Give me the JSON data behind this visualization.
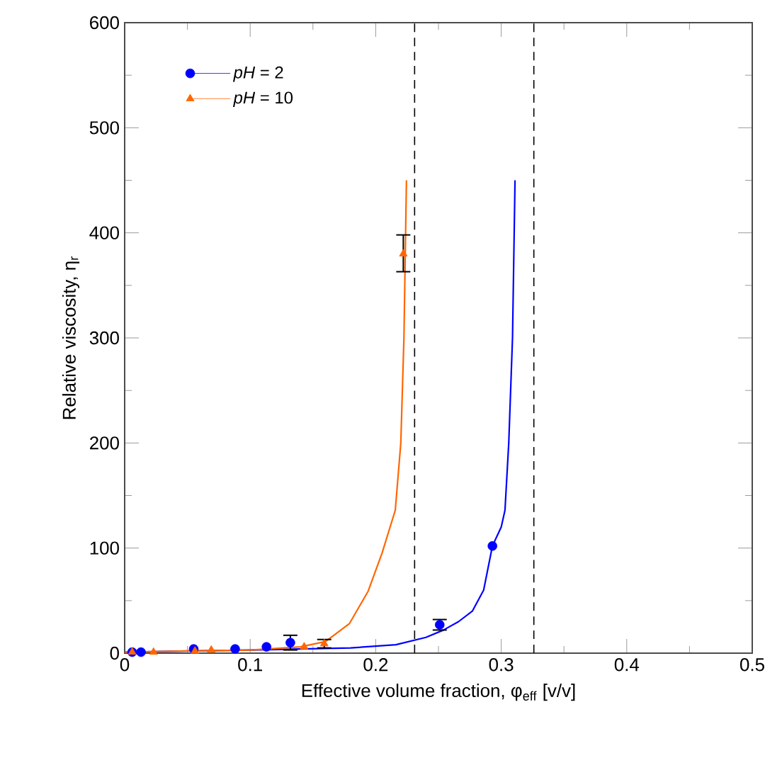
{
  "chart_data": {
    "type": "scatter",
    "xlabel": "Effective volume fraction, φ$_{eff}$ [v/v]",
    "ylabel": "Relative viscosity, η$_{r}$",
    "xlim": [
      0,
      0.5
    ],
    "ylim": [
      0,
      600
    ],
    "xticks": [
      0,
      0.1,
      0.2,
      0.3,
      0.4,
      0.5
    ],
    "yticks": [
      0,
      100,
      200,
      300,
      400,
      500,
      600
    ],
    "grid": false,
    "legend": "top left",
    "series": [
      {
        "name": "*pH* = 2",
        "marker": "circle",
        "color": "#0000ff",
        "x": [
          0.006,
          0.013,
          0.055,
          0.088,
          0.113,
          0.132,
          0.251,
          0.293
        ],
        "values": [
          1,
          1,
          4,
          4,
          6,
          10,
          27,
          102
        ],
        "errors": [
          null,
          null,
          null,
          null,
          null,
          7,
          5,
          null
        ]
      },
      {
        "name": "*pH* = 10",
        "marker": "triangle",
        "color": "#ff6600",
        "x": [
          0.006,
          0.023,
          0.056,
          0.069,
          0.143,
          0.159,
          0.222
        ],
        "values": [
          1,
          1,
          2,
          3,
          6,
          9,
          380
        ],
        "errors": [
          null,
          null,
          null,
          null,
          null,
          4,
          [
            363,
            398
          ]
        ]
      },
      {
        "type": "line",
        "color": "#0000ff",
        "x": [
          0,
          0.05,
          0.1,
          0.14,
          0.18,
          0.216,
          0.24,
          0.254,
          0.266,
          0.277,
          0.286,
          0.293,
          0.3,
          0.303,
          0.306,
          0.309,
          0.311
        ],
        "values": [
          1,
          2,
          3,
          4,
          5,
          8,
          15,
          22,
          30,
          40,
          60,
          102,
          120,
          136,
          200,
          300,
          450
        ]
      },
      {
        "type": "line",
        "color": "#ff6600",
        "x": [
          0,
          0.05,
          0.1,
          0.14,
          0.16,
          0.179,
          0.194,
          0.205,
          0.2156,
          0.22,
          0.2225,
          0.2245
        ],
        "values": [
          1,
          2,
          3,
          6,
          11,
          28,
          59,
          95,
          136,
          200,
          300,
          450
        ]
      }
    ],
    "ref_lines": [
      {
        "axis": "x",
        "value": 0.231,
        "line_style": "dashed",
        "color": "#000000"
      },
      {
        "axis": "x",
        "value": 0.326,
        "line_style": "dashed",
        "color": "#000000"
      }
    ]
  }
}
